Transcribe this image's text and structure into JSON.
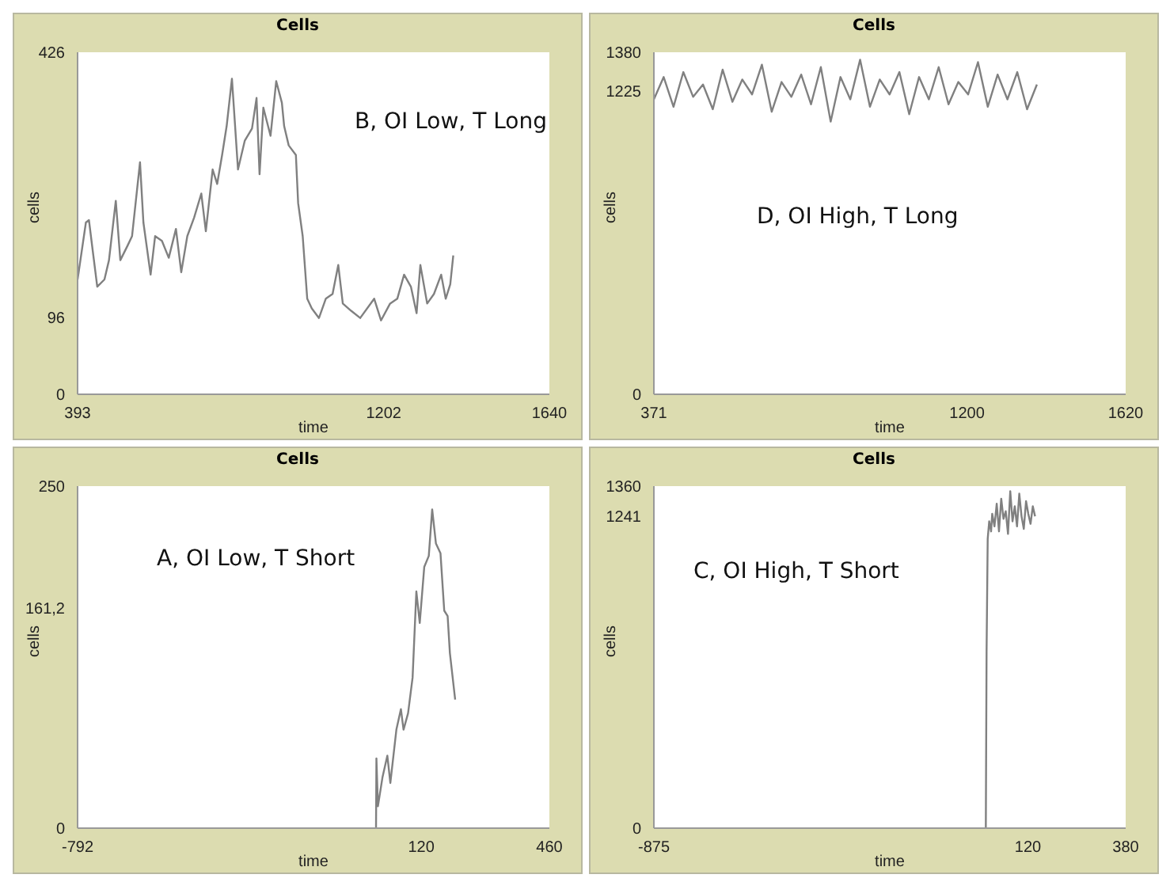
{
  "chart_data": [
    {
      "type": "line",
      "title": "Cells",
      "xlabel": "time",
      "ylabel": "cells",
      "annotations": [
        "B, OI Low, T Long"
      ],
      "xlim": [
        393,
        1640
      ],
      "xticks": [
        393,
        1202,
        1640
      ],
      "ylim": [
        0,
        426
      ],
      "yticks": [
        0,
        96,
        426
      ],
      "grid": false,
      "legend": false,
      "marker": "none",
      "series": [
        {
          "color": "#808080",
          "x": [
            393,
            415,
            423,
            433,
            445,
            464,
            476,
            494,
            506,
            525,
            537,
            558,
            567,
            586,
            598,
            616,
            634,
            653,
            667,
            683,
            701,
            720,
            732,
            750,
            762,
            775,
            787,
            801,
            817,
            835,
            854,
            866,
            874,
            884,
            903,
            918,
            933,
            939,
            951,
            970,
            976,
            988,
            1000,
            1012,
            1031,
            1049,
            1067,
            1082,
            1094,
            1116,
            1140,
            1177,
            1195,
            1219,
            1238,
            1256,
            1274,
            1289,
            1299,
            1317,
            1335,
            1354,
            1366,
            1378,
            1386
          ],
          "values": [
            143,
            214,
            217,
            179,
            134,
            143,
            167,
            241,
            167,
            185,
            197,
            289,
            214,
            149,
            197,
            191,
            170,
            206,
            152,
            197,
            220,
            250,
            203,
            280,
            262,
            298,
            334,
            393,
            280,
            316,
            331,
            369,
            274,
            357,
            322,
            390,
            363,
            334,
            310,
            298,
            238,
            197,
            119,
            107,
            95,
            119,
            125,
            161,
            113,
            104,
            95,
            119,
            92,
            113,
            119,
            149,
            134,
            101,
            161,
            113,
            125,
            149,
            119,
            137,
            173
          ]
        }
      ]
    },
    {
      "type": "line",
      "title": "Cells",
      "xlabel": "time",
      "ylabel": "cells",
      "annotations": [
        "D, OI High, T Long"
      ],
      "xlim": [
        371,
        1620
      ],
      "xticks": [
        371,
        1200,
        1620
      ],
      "ylim": [
        0,
        1380
      ],
      "yticks": [
        0,
        1225,
        1380
      ],
      "grid": false,
      "legend": false,
      "marker": "none",
      "series": [
        {
          "color": "#808080",
          "x": [
            371,
            397,
            423,
            449,
            475,
            501,
            527,
            553,
            579,
            605,
            631,
            657,
            683,
            709,
            735,
            761,
            787,
            813,
            839,
            865,
            891,
            917,
            943,
            969,
            995,
            1021,
            1047,
            1073,
            1099,
            1125,
            1151,
            1177,
            1203,
            1229,
            1255,
            1281,
            1307,
            1333,
            1359,
            1385
          ],
          "values": [
            1190,
            1280,
            1160,
            1300,
            1200,
            1250,
            1150,
            1310,
            1180,
            1270,
            1210,
            1330,
            1140,
            1260,
            1200,
            1290,
            1170,
            1320,
            1100,
            1280,
            1190,
            1350,
            1160,
            1270,
            1210,
            1300,
            1130,
            1280,
            1190,
            1320,
            1170,
            1260,
            1210,
            1340,
            1160,
            1290,
            1190,
            1300,
            1150,
            1250
          ]
        }
      ]
    },
    {
      "type": "line",
      "title": "Cells",
      "xlabel": "time",
      "ylabel": "cells",
      "annotations": [
        "A, OI Low, T Short"
      ],
      "xlim": [
        -792,
        460
      ],
      "xticks": [
        -792,
        120,
        460
      ],
      "ylim": [
        0,
        250
      ],
      "yticks": [
        0,
        {
          "value": 161.2,
          "label": "161,2"
        },
        250
      ],
      "grid": false,
      "legend": false,
      "marker": "none",
      "series": [
        {
          "color": "#808080",
          "x": [
            0,
            1,
            5,
            17,
            30,
            38,
            54,
            66,
            73,
            85,
            97,
            107,
            116,
            128,
            140,
            149,
            159,
            171,
            181,
            190,
            196,
            210
          ],
          "values": [
            0,
            51,
            16,
            37,
            53,
            33,
            72,
            87,
            72,
            84,
            110,
            173,
            150,
            191,
            199,
            233,
            208,
            201,
            159,
            155,
            128,
            94
          ]
        }
      ]
    },
    {
      "type": "line",
      "title": "Cells",
      "xlabel": "time",
      "ylabel": "cells",
      "annotations": [
        "C, OI High, T Short"
      ],
      "xlim": [
        -875,
        380
      ],
      "xticks": [
        -875,
        120,
        380
      ],
      "ylim": [
        0,
        1360
      ],
      "yticks": [
        0,
        1241,
        1360
      ],
      "grid": false,
      "legend": false,
      "marker": "none",
      "series": [
        {
          "color": "#808080",
          "x": [
            8,
            10,
            13,
            17,
            22,
            25,
            31,
            37,
            43,
            49,
            55,
            61,
            67,
            73,
            79,
            85,
            91,
            97,
            103,
            109,
            115,
            121,
            127,
            133,
            139
          ],
          "values": [
            0,
            700,
            1150,
            1220,
            1180,
            1250,
            1200,
            1290,
            1180,
            1310,
            1230,
            1260,
            1170,
            1340,
            1220,
            1280,
            1200,
            1330,
            1240,
            1190,
            1300,
            1250,
            1210,
            1280,
            1240
          ]
        }
      ]
    }
  ]
}
